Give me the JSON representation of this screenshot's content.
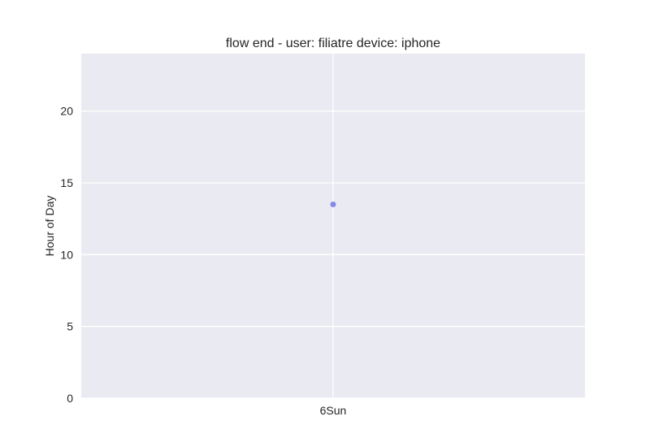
{
  "chart_data": {
    "type": "scatter",
    "title": "flow end - user: filiatre device: iphone",
    "xlabel": "",
    "ylabel": "Hour of Day",
    "x_categories": [
      "6Sun"
    ],
    "y_ticks": [
      0,
      5,
      10,
      15,
      20
    ],
    "ylim": [
      0,
      24
    ],
    "grid": true,
    "background": "#eaeaf2",
    "grid_color": "#ffffff",
    "point_color": "#7b84e8",
    "series": [
      {
        "points": [
          {
            "x": "6Sun",
            "y": 13.5
          }
        ]
      }
    ]
  }
}
